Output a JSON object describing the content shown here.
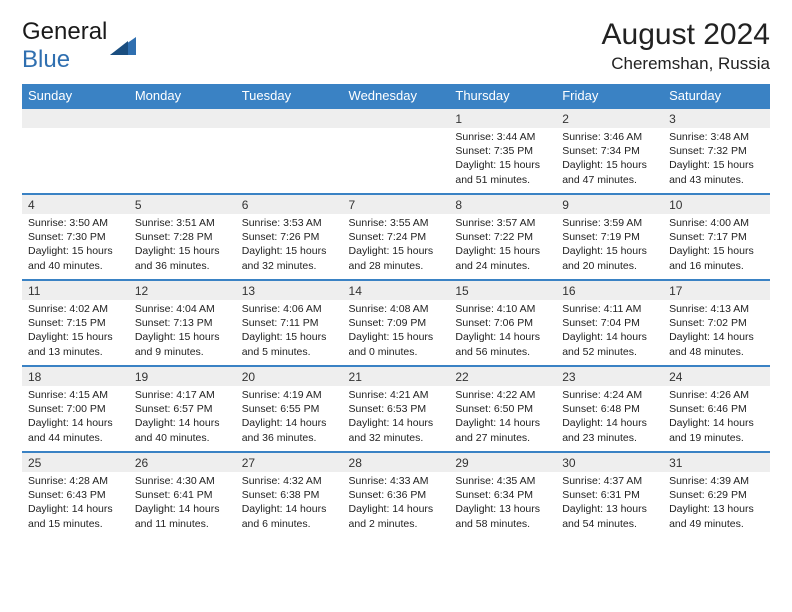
{
  "logo": {
    "part1": "General",
    "part2": "Blue"
  },
  "title": "August 2024",
  "subtitle": "Cheremshan, Russia",
  "colors": {
    "header_bg": "#3a82c4",
    "header_text": "#ffffff",
    "daynum_bg": "#eeeeee",
    "border": "#3a82c4",
    "logo_blue": "#2f6fb0"
  },
  "day_headers": [
    "Sunday",
    "Monday",
    "Tuesday",
    "Wednesday",
    "Thursday",
    "Friday",
    "Saturday"
  ],
  "weeks": [
    [
      null,
      null,
      null,
      null,
      {
        "n": "1",
        "sr": "3:44 AM",
        "ss": "7:35 PM",
        "dl": "15 hours and 51 minutes."
      },
      {
        "n": "2",
        "sr": "3:46 AM",
        "ss": "7:34 PM",
        "dl": "15 hours and 47 minutes."
      },
      {
        "n": "3",
        "sr": "3:48 AM",
        "ss": "7:32 PM",
        "dl": "15 hours and 43 minutes."
      }
    ],
    [
      {
        "n": "4",
        "sr": "3:50 AM",
        "ss": "7:30 PM",
        "dl": "15 hours and 40 minutes."
      },
      {
        "n": "5",
        "sr": "3:51 AM",
        "ss": "7:28 PM",
        "dl": "15 hours and 36 minutes."
      },
      {
        "n": "6",
        "sr": "3:53 AM",
        "ss": "7:26 PM",
        "dl": "15 hours and 32 minutes."
      },
      {
        "n": "7",
        "sr": "3:55 AM",
        "ss": "7:24 PM",
        "dl": "15 hours and 28 minutes."
      },
      {
        "n": "8",
        "sr": "3:57 AM",
        "ss": "7:22 PM",
        "dl": "15 hours and 24 minutes."
      },
      {
        "n": "9",
        "sr": "3:59 AM",
        "ss": "7:19 PM",
        "dl": "15 hours and 20 minutes."
      },
      {
        "n": "10",
        "sr": "4:00 AM",
        "ss": "7:17 PM",
        "dl": "15 hours and 16 minutes."
      }
    ],
    [
      {
        "n": "11",
        "sr": "4:02 AM",
        "ss": "7:15 PM",
        "dl": "15 hours and 13 minutes."
      },
      {
        "n": "12",
        "sr": "4:04 AM",
        "ss": "7:13 PM",
        "dl": "15 hours and 9 minutes."
      },
      {
        "n": "13",
        "sr": "4:06 AM",
        "ss": "7:11 PM",
        "dl": "15 hours and 5 minutes."
      },
      {
        "n": "14",
        "sr": "4:08 AM",
        "ss": "7:09 PM",
        "dl": "15 hours and 0 minutes."
      },
      {
        "n": "15",
        "sr": "4:10 AM",
        "ss": "7:06 PM",
        "dl": "14 hours and 56 minutes."
      },
      {
        "n": "16",
        "sr": "4:11 AM",
        "ss": "7:04 PM",
        "dl": "14 hours and 52 minutes."
      },
      {
        "n": "17",
        "sr": "4:13 AM",
        "ss": "7:02 PM",
        "dl": "14 hours and 48 minutes."
      }
    ],
    [
      {
        "n": "18",
        "sr": "4:15 AM",
        "ss": "7:00 PM",
        "dl": "14 hours and 44 minutes."
      },
      {
        "n": "19",
        "sr": "4:17 AM",
        "ss": "6:57 PM",
        "dl": "14 hours and 40 minutes."
      },
      {
        "n": "20",
        "sr": "4:19 AM",
        "ss": "6:55 PM",
        "dl": "14 hours and 36 minutes."
      },
      {
        "n": "21",
        "sr": "4:21 AM",
        "ss": "6:53 PM",
        "dl": "14 hours and 32 minutes."
      },
      {
        "n": "22",
        "sr": "4:22 AM",
        "ss": "6:50 PM",
        "dl": "14 hours and 27 minutes."
      },
      {
        "n": "23",
        "sr": "4:24 AM",
        "ss": "6:48 PM",
        "dl": "14 hours and 23 minutes."
      },
      {
        "n": "24",
        "sr": "4:26 AM",
        "ss": "6:46 PM",
        "dl": "14 hours and 19 minutes."
      }
    ],
    [
      {
        "n": "25",
        "sr": "4:28 AM",
        "ss": "6:43 PM",
        "dl": "14 hours and 15 minutes."
      },
      {
        "n": "26",
        "sr": "4:30 AM",
        "ss": "6:41 PM",
        "dl": "14 hours and 11 minutes."
      },
      {
        "n": "27",
        "sr": "4:32 AM",
        "ss": "6:38 PM",
        "dl": "14 hours and 6 minutes."
      },
      {
        "n": "28",
        "sr": "4:33 AM",
        "ss": "6:36 PM",
        "dl": "14 hours and 2 minutes."
      },
      {
        "n": "29",
        "sr": "4:35 AM",
        "ss": "6:34 PM",
        "dl": "13 hours and 58 minutes."
      },
      {
        "n": "30",
        "sr": "4:37 AM",
        "ss": "6:31 PM",
        "dl": "13 hours and 54 minutes."
      },
      {
        "n": "31",
        "sr": "4:39 AM",
        "ss": "6:29 PM",
        "dl": "13 hours and 49 minutes."
      }
    ]
  ],
  "labels": {
    "sunrise": "Sunrise: ",
    "sunset": "Sunset: ",
    "daylight": "Daylight: "
  }
}
